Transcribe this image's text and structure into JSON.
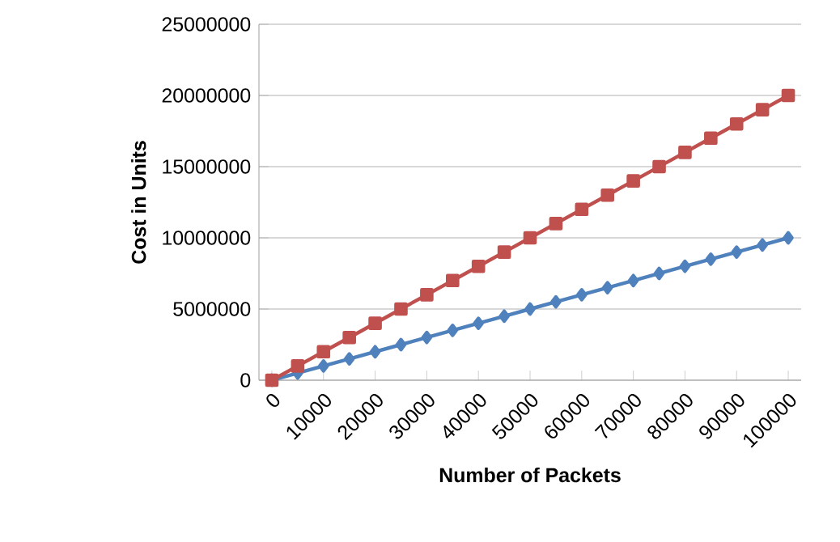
{
  "chart_data": {
    "type": "line",
    "xlabel": "Number of Packets",
    "ylabel": "Cost in Units",
    "x": [
      0,
      5000,
      10000,
      15000,
      20000,
      25000,
      30000,
      35000,
      40000,
      45000,
      50000,
      55000,
      60000,
      65000,
      70000,
      75000,
      80000,
      85000,
      90000,
      95000,
      100000
    ],
    "series": [
      {
        "color": "#4f81bd",
        "marker": "diamond",
        "values": [
          0,
          500000,
          1000000,
          1500000,
          2000000,
          2500000,
          3000000,
          3500000,
          4000000,
          4500000,
          5000000,
          5500000,
          6000000,
          6500000,
          7000000,
          7500000,
          8000000,
          8500000,
          9000000,
          9500000,
          10000000
        ]
      },
      {
        "color": "#c0504d",
        "marker": "square",
        "values": [
          0,
          1000000,
          2000000,
          3000000,
          4000000,
          5000000,
          6000000,
          7000000,
          8000000,
          9000000,
          10000000,
          11000000,
          12000000,
          13000000,
          14000000,
          15000000,
          16000000,
          17000000,
          18000000,
          19000000,
          20000000
        ]
      }
    ],
    "xlim": [
      -2500,
      102500
    ],
    "xticks": [
      0,
      10000,
      20000,
      30000,
      40000,
      50000,
      60000,
      70000,
      80000,
      90000,
      100000
    ],
    "ylim": [
      0,
      25000000
    ],
    "yticks": [
      0,
      5000000,
      10000000,
      15000000,
      20000000,
      25000000
    ],
    "grid": "y"
  }
}
